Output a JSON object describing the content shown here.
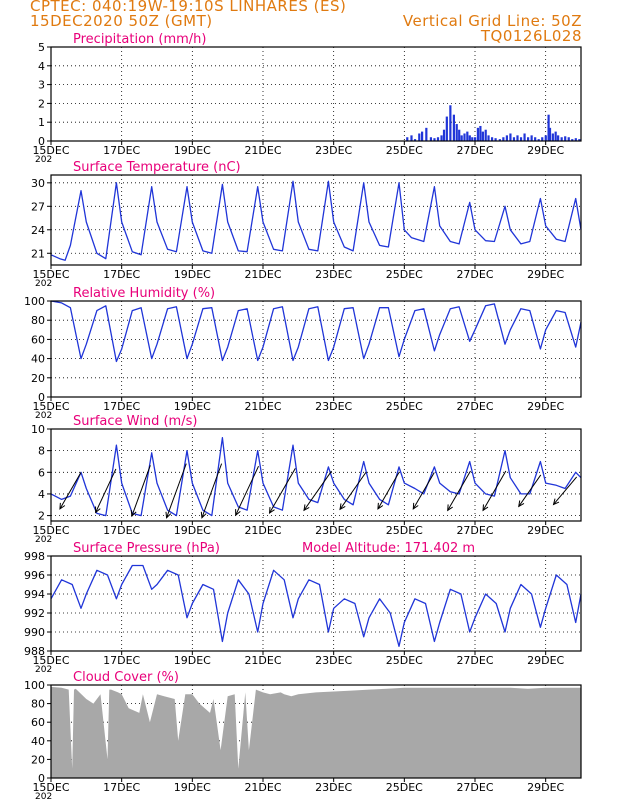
{
  "header": {
    "line1": "CPTEC:   040:19W-19:10S   LINHARES (ES)",
    "line2": "15DEC2020  50Z  (GMT)",
    "grid_note": "Vertical Grid Line: 50Z",
    "code": "TQ0126L028"
  },
  "colors": {
    "header": "#e07a10",
    "title": "#e8007a",
    "line": "#2035d8",
    "bar": "#2035d8",
    "cloud": "#a8a8a8",
    "axis": "#000000",
    "grid": "#000000"
  },
  "x_axis": {
    "ticks": [
      "15DEC",
      "17DEC",
      "19DEC",
      "21DEC",
      "23DEC",
      "25DEC",
      "27DEC",
      "29DEC"
    ],
    "tick_days": [
      0,
      2,
      4,
      6,
      8,
      10,
      12,
      14
    ],
    "year_fragment": "202",
    "range_days": [
      0,
      15
    ]
  },
  "chart_data": [
    {
      "id": "precip",
      "type": "bar",
      "title": "Precipitation (mm/h)",
      "ylim": [
        0,
        5
      ],
      "yticks": [
        0,
        1,
        2,
        3,
        4,
        5
      ],
      "x_days": [
        10.08,
        10.2,
        10.3,
        10.42,
        10.5,
        10.62,
        10.75,
        10.85,
        10.95,
        11.05,
        11.12,
        11.2,
        11.3,
        11.4,
        11.48,
        11.55,
        11.62,
        11.7,
        11.78,
        11.85,
        11.92,
        12.0,
        12.08,
        12.15,
        12.22,
        12.3,
        12.38,
        12.48,
        12.58,
        12.7,
        12.8,
        12.9,
        13.0,
        13.1,
        13.2,
        13.3,
        13.4,
        13.5,
        13.6,
        13.7,
        13.8,
        13.9,
        14.0,
        14.08,
        14.12,
        14.2,
        14.28,
        14.35,
        14.45,
        14.55,
        14.65,
        14.75,
        14.85,
        14.95
      ],
      "values": [
        0.2,
        0.3,
        0.1,
        0.4,
        0.5,
        0.7,
        0.2,
        0.15,
        0.2,
        0.3,
        0.6,
        1.3,
        1.9,
        1.4,
        0.9,
        0.6,
        0.3,
        0.4,
        0.5,
        0.3,
        0.2,
        0.2,
        0.7,
        0.8,
        0.5,
        0.6,
        0.3,
        0.2,
        0.15,
        0.1,
        0.2,
        0.3,
        0.4,
        0.2,
        0.3,
        0.2,
        0.4,
        0.2,
        0.3,
        0.2,
        0.1,
        0.2,
        0.3,
        1.4,
        0.7,
        0.4,
        0.5,
        0.3,
        0.2,
        0.25,
        0.2,
        0.1,
        0.15,
        0.1
      ]
    },
    {
      "id": "temp",
      "type": "line",
      "title": "Surface Temperature (nC)",
      "ylim": [
        19.5,
        31
      ],
      "yticks": [
        21,
        24,
        27,
        30
      ],
      "x_days": [
        0,
        0.25,
        0.4,
        0.55,
        0.85,
        1.0,
        1.3,
        1.55,
        1.85,
        2.0,
        2.3,
        2.55,
        2.85,
        3.0,
        3.3,
        3.55,
        3.85,
        4.0,
        4.3,
        4.55,
        4.85,
        5.0,
        5.3,
        5.55,
        5.85,
        6.0,
        6.3,
        6.55,
        6.85,
        7.0,
        7.3,
        7.55,
        7.85,
        8.0,
        8.3,
        8.55,
        8.85,
        9.0,
        9.3,
        9.55,
        9.85,
        10.0,
        10.2,
        10.55,
        10.85,
        11.0,
        11.3,
        11.55,
        11.85,
        12.0,
        12.3,
        12.55,
        12.85,
        13.0,
        13.3,
        13.55,
        13.85,
        14.0,
        14.3,
        14.55,
        14.85,
        15.0
      ],
      "values": [
        20.8,
        20.3,
        20.1,
        22.0,
        29.0,
        25.0,
        21.0,
        20.3,
        30.0,
        25.0,
        21.2,
        20.8,
        29.5,
        25.0,
        21.5,
        21.2,
        29.5,
        25.0,
        21.3,
        21.0,
        29.8,
        25.0,
        21.3,
        21.2,
        29.5,
        25.0,
        21.5,
        21.3,
        30.2,
        25.0,
        21.5,
        21.3,
        30.2,
        25.0,
        21.8,
        21.3,
        30.0,
        25.0,
        22.0,
        21.8,
        30.0,
        24.0,
        23.0,
        22.5,
        29.5,
        24.5,
        22.5,
        22.2,
        27.5,
        24.0,
        22.6,
        22.5,
        27.0,
        24.0,
        22.2,
        22.5,
        28.0,
        24.5,
        22.8,
        22.5,
        28.0,
        24.0
      ]
    },
    {
      "id": "rh",
      "type": "line",
      "title": "Relative Humidity (%)",
      "ylim": [
        0,
        100
      ],
      "yticks": [
        0,
        20,
        40,
        60,
        80,
        100
      ],
      "x_days": [
        0,
        0.3,
        0.55,
        0.85,
        1.0,
        1.3,
        1.55,
        1.85,
        2.0,
        2.3,
        2.55,
        2.85,
        3.0,
        3.3,
        3.55,
        3.85,
        4.0,
        4.3,
        4.55,
        4.85,
        5.0,
        5.3,
        5.55,
        5.85,
        6.0,
        6.3,
        6.55,
        6.85,
        7.0,
        7.3,
        7.55,
        7.85,
        8.0,
        8.3,
        8.55,
        8.85,
        9.0,
        9.3,
        9.55,
        9.85,
        10.0,
        10.3,
        10.55,
        10.85,
        11.0,
        11.3,
        11.55,
        11.85,
        12.0,
        12.3,
        12.55,
        12.85,
        13.0,
        13.3,
        13.55,
        13.85,
        14.0,
        14.3,
        14.55,
        14.85,
        15.0
      ],
      "values": [
        100,
        98,
        93,
        40,
        55,
        90,
        95,
        37,
        50,
        90,
        93,
        40,
        55,
        92,
        94,
        40,
        55,
        92,
        93,
        38,
        52,
        90,
        92,
        38,
        52,
        92,
        94,
        38,
        52,
        92,
        94,
        38,
        52,
        92,
        93,
        40,
        55,
        93,
        93,
        42,
        60,
        90,
        92,
        48,
        65,
        92,
        94,
        58,
        70,
        95,
        97,
        55,
        70,
        92,
        90,
        50,
        70,
        90,
        88,
        52,
        78
      ]
    },
    {
      "id": "wind",
      "type": "line",
      "title": "Surface Wind (m/s)",
      "ylim": [
        1.5,
        10
      ],
      "yticks": [
        2,
        4,
        6,
        8,
        10
      ],
      "x_days": [
        0,
        0.3,
        0.55,
        0.85,
        1.0,
        1.3,
        1.55,
        1.85,
        2.0,
        2.3,
        2.55,
        2.85,
        3.0,
        3.3,
        3.55,
        3.85,
        4.0,
        4.3,
        4.55,
        4.85,
        5.0,
        5.3,
        5.55,
        5.85,
        6.0,
        6.3,
        6.55,
        6.85,
        7.0,
        7.3,
        7.55,
        7.85,
        8.0,
        8.3,
        8.55,
        8.85,
        9.0,
        9.3,
        9.55,
        9.85,
        10.0,
        10.3,
        10.55,
        10.85,
        11.0,
        11.3,
        11.55,
        11.85,
        12.0,
        12.3,
        12.55,
        12.85,
        13.0,
        13.3,
        13.55,
        13.85,
        14.0,
        14.3,
        14.55,
        14.85,
        15.0
      ],
      "values": [
        4.0,
        3.5,
        3.8,
        6.0,
        4.5,
        2.2,
        2.0,
        8.5,
        5.0,
        2.2,
        2.0,
        7.8,
        5.0,
        2.5,
        2.0,
        8.0,
        5.0,
        2.5,
        2.0,
        9.2,
        5.0,
        2.8,
        2.5,
        8.0,
        5.0,
        2.8,
        2.5,
        8.5,
        5.0,
        3.5,
        3.2,
        6.5,
        5.0,
        3.5,
        3.0,
        7.0,
        5.0,
        3.5,
        3.0,
        6.5,
        5.0,
        4.5,
        4.0,
        6.5,
        5.0,
        4.2,
        4.0,
        7.0,
        5.0,
        4.0,
        3.8,
        8.0,
        5.5,
        4.0,
        4.0,
        7.0,
        5.0,
        4.8,
        4.5,
        6.0,
        5.5
      ],
      "vectors": [
        {
          "x": 0.55,
          "y": 4.3,
          "speed": 3.5,
          "dir": 210
        },
        {
          "x": 1.55,
          "y": 4.3,
          "speed": 4.0,
          "dir": 205
        },
        {
          "x": 2.55,
          "y": 4.3,
          "speed": 4.5,
          "dir": 200
        },
        {
          "x": 3.55,
          "y": 4.3,
          "speed": 4.8,
          "dir": 200
        },
        {
          "x": 4.55,
          "y": 4.3,
          "speed": 4.8,
          "dir": 200
        },
        {
          "x": 5.55,
          "y": 4.3,
          "speed": 4.5,
          "dir": 205
        },
        {
          "x": 6.55,
          "y": 4.3,
          "speed": 4.3,
          "dir": 210
        },
        {
          "x": 7.55,
          "y": 4.3,
          "speed": 4.0,
          "dir": 215
        },
        {
          "x": 8.55,
          "y": 4.3,
          "speed": 3.8,
          "dir": 215
        },
        {
          "x": 9.55,
          "y": 4.3,
          "speed": 3.5,
          "dir": 210
        },
        {
          "x": 10.55,
          "y": 4.3,
          "speed": 3.5,
          "dir": 210
        },
        {
          "x": 11.55,
          "y": 4.3,
          "speed": 3.8,
          "dir": 210
        },
        {
          "x": 12.55,
          "y": 4.3,
          "speed": 3.8,
          "dir": 210
        },
        {
          "x": 13.55,
          "y": 4.3,
          "speed": 3.2,
          "dir": 215
        },
        {
          "x": 14.55,
          "y": 4.3,
          "speed": 3.0,
          "dir": 220
        }
      ]
    },
    {
      "id": "press",
      "type": "line",
      "title": "Surface Pressure (hPa)",
      "note": "Model Altitude: 171.402 m",
      "ylim": [
        988,
        998
      ],
      "yticks": [
        988,
        990,
        992,
        994,
        996,
        998
      ],
      "x_days": [
        0,
        0.3,
        0.6,
        0.85,
        1.0,
        1.3,
        1.6,
        1.85,
        2.0,
        2.3,
        2.6,
        2.85,
        3.0,
        3.3,
        3.6,
        3.85,
        4.0,
        4.3,
        4.6,
        4.85,
        5.0,
        5.3,
        5.6,
        5.85,
        6.0,
        6.3,
        6.6,
        6.85,
        7.0,
        7.3,
        7.6,
        7.85,
        8.0,
        8.3,
        8.6,
        8.85,
        9.0,
        9.3,
        9.6,
        9.85,
        10.0,
        10.3,
        10.6,
        10.85,
        11.0,
        11.3,
        11.6,
        11.85,
        12.0,
        12.3,
        12.6,
        12.85,
        13.0,
        13.3,
        13.6,
        13.85,
        14.0,
        14.3,
        14.6,
        14.85,
        15.0
      ],
      "values": [
        993.5,
        995.5,
        995.0,
        992.5,
        994.0,
        996.5,
        996.0,
        993.5,
        995.0,
        997.0,
        997.0,
        994.5,
        995.0,
        996.5,
        996.0,
        991.5,
        993.0,
        995.0,
        994.5,
        989.0,
        992.0,
        995.5,
        994.0,
        990.0,
        993.0,
        996.5,
        995.5,
        991.5,
        993.5,
        995.5,
        995.0,
        990.0,
        992.5,
        993.5,
        993.0,
        989.5,
        991.5,
        993.5,
        992.0,
        988.5,
        991.0,
        993.5,
        993.0,
        989.0,
        991.0,
        994.5,
        994.0,
        990.0,
        991.5,
        994.0,
        993.0,
        990.0,
        992.5,
        995.0,
        994.0,
        990.5,
        992.5,
        996.0,
        995.0,
        991.0,
        994.0
      ]
    },
    {
      "id": "cloud",
      "type": "area",
      "title": "Cloud Cover (%)",
      "ylim": [
        0,
        100
      ],
      "yticks": [
        0,
        20,
        40,
        60,
        80,
        100
      ],
      "x_days": [
        0,
        0.3,
        0.5,
        0.6,
        0.65,
        0.7,
        1.0,
        1.2,
        1.4,
        1.6,
        1.65,
        1.7,
        1.9,
        2.0,
        2.2,
        2.5,
        2.6,
        2.8,
        3.0,
        3.2,
        3.5,
        3.6,
        3.8,
        4.0,
        4.2,
        4.5,
        4.6,
        4.8,
        5.0,
        5.2,
        5.3,
        5.5,
        5.6,
        5.8,
        6.0,
        6.2,
        6.5,
        6.6,
        6.8,
        7.0,
        7.5,
        8.0,
        8.5,
        9.0,
        9.5,
        10.0,
        10.5,
        11.0,
        11.5,
        12.0,
        12.5,
        13.0,
        13.5,
        14.0,
        14.5,
        15.0
      ],
      "values": [
        98,
        97,
        95,
        10,
        95,
        96,
        85,
        80,
        90,
        20,
        95,
        95,
        92,
        90,
        75,
        70,
        90,
        60,
        90,
        88,
        85,
        40,
        90,
        90,
        80,
        70,
        85,
        30,
        88,
        90,
        10,
        92,
        30,
        95,
        92,
        90,
        92,
        90,
        88,
        90,
        92,
        93,
        94,
        95,
        96,
        97,
        97,
        97,
        97,
        97,
        97,
        97,
        96,
        97,
        97,
        97
      ]
    }
  ]
}
